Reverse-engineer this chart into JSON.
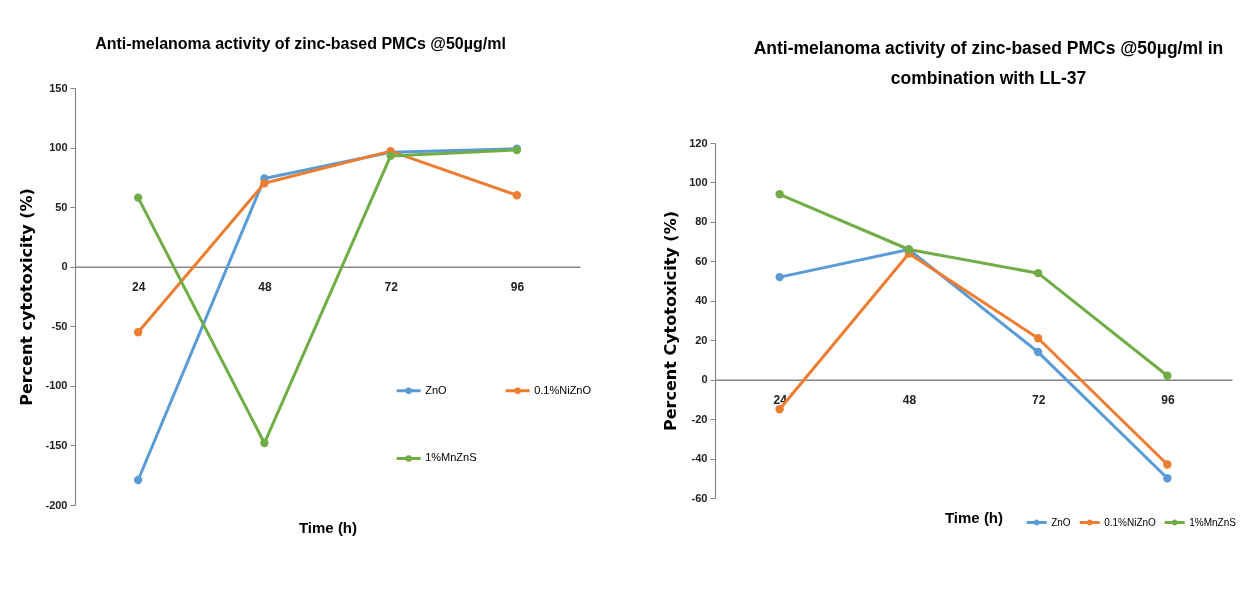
{
  "chart_data": [
    {
      "type": "line",
      "title": "Anti-melanoma activity of zinc-based PMCs @50µg/ml",
      "xlabel": "Time (h)",
      "ylabel": "Percent cytotoxicity (%)",
      "categories": [
        "24",
        "48",
        "72",
        "96"
      ],
      "series": [
        {
          "name": "ZnO",
          "color": "#5b9bd5",
          "values": [
            -179,
            74,
            96,
            99
          ]
        },
        {
          "name": "0.1%NiZnO",
          "color": "#ed7d31",
          "values": [
            -55,
            70,
            97,
            60
          ]
        },
        {
          "name": "1%MnZnS",
          "color": "#70ad47",
          "values": [
            58,
            -148,
            93,
            98
          ]
        }
      ],
      "ylim": [
        -200,
        150
      ],
      "yticks": [
        -200,
        -150,
        -100,
        -50,
        0,
        50,
        100,
        150
      ],
      "legend": "bottom right",
      "marker": "circle"
    },
    {
      "type": "line",
      "title": "Anti-melanoma activity of zinc-based PMCs @50µg/ml in combination with LL-37",
      "xlabel": "Time (h)",
      "ylabel": "Percent Cytotoxicity (%)",
      "categories": [
        "24",
        "48",
        "72",
        "96"
      ],
      "series": [
        {
          "name": "ZnO",
          "color": "#5b9bd5",
          "values": [
            52,
            66,
            14,
            -50
          ]
        },
        {
          "name": "0.1%NiZnO",
          "color": "#ed7d31",
          "values": [
            -15,
            64,
            21,
            -43
          ]
        },
        {
          "name": "1%MnZnS",
          "color": "#70ad47",
          "values": [
            94,
            66,
            54,
            2
          ]
        }
      ],
      "ylim": [
        -60,
        120
      ],
      "yticks": [
        -60,
        -40,
        -20,
        0,
        20,
        40,
        60,
        80,
        100,
        120
      ],
      "legend": "bottom",
      "marker": "circle"
    }
  ]
}
